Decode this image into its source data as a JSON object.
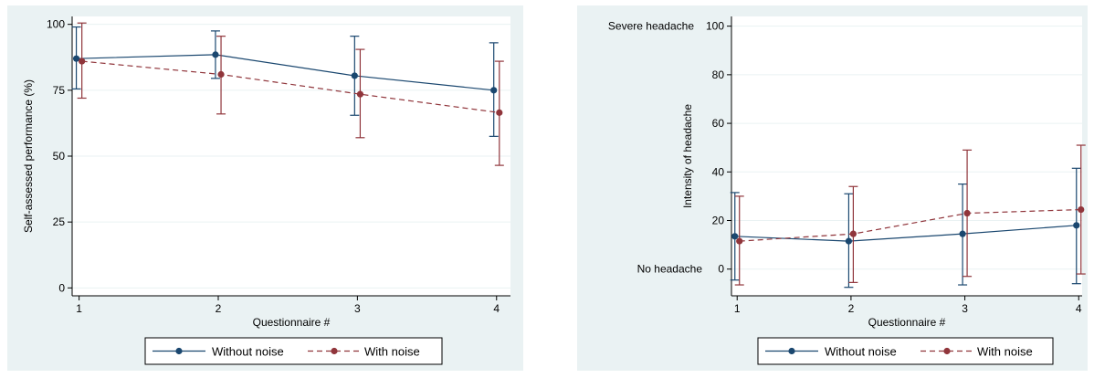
{
  "colors": {
    "outer_bg": "#eaf2f3",
    "plot_bg": "#ffffff",
    "grid": "#eaf2f3",
    "without_noise": "#1a476f",
    "with_noise": "#90353b"
  },
  "chart_data": [
    {
      "type": "line",
      "title": "",
      "xlabel": "Questionnaire #",
      "ylabel": "Self-assessed performance (%)",
      "x": [
        1,
        2,
        3,
        4
      ],
      "xlim": [
        0.95,
        4.1
      ],
      "ylim": [
        -3,
        103
      ],
      "yticks": [
        0,
        25,
        50,
        75,
        100
      ],
      "ytick_labels": [
        "0",
        "25",
        "50",
        "75",
        "100"
      ],
      "grid": true,
      "legend": "bottom",
      "series": [
        {
          "name": "Without noise",
          "style": "solid",
          "x": [
            0.98,
            1.98,
            2.98,
            3.98
          ],
          "values": [
            87,
            88.5,
            80.5,
            75
          ],
          "lower": [
            75.5,
            79.5,
            65.5,
            57.5
          ],
          "upper": [
            99,
            97.5,
            95.5,
            93
          ]
        },
        {
          "name": "With noise",
          "style": "dashed",
          "x": [
            1.02,
            2.02,
            3.02,
            4.02
          ],
          "values": [
            86,
            81,
            73.5,
            66.5
          ],
          "lower": [
            72,
            66,
            57,
            46.5
          ],
          "upper": [
            100.5,
            95.5,
            90.5,
            86
          ]
        }
      ]
    },
    {
      "type": "line",
      "title": "",
      "xlabel": "Questionnaire #",
      "ylabel": "Intensity of headache",
      "x": [
        1,
        2,
        3,
        4
      ],
      "xlim": [
        0.95,
        4.03
      ],
      "ylim": [
        -11,
        104
      ],
      "yticks": [
        0,
        20,
        40,
        60,
        80,
        100
      ],
      "ytick_labels": [
        "0",
        "20",
        "40",
        "60",
        "80",
        "100"
      ],
      "annotations": {
        "top": "Severe headache",
        "bottom": "No headache"
      },
      "grid": true,
      "legend": "bottom",
      "series": [
        {
          "name": "Without noise",
          "style": "solid",
          "x": [
            0.98,
            1.98,
            2.98,
            3.98
          ],
          "values": [
            13.5,
            11.5,
            14.5,
            18
          ],
          "lower": [
            -4.5,
            -7.5,
            -6.5,
            -6
          ],
          "upper": [
            31.5,
            31,
            35,
            41.5
          ]
        },
        {
          "name": "With noise",
          "style": "dashed",
          "x": [
            1.02,
            2.02,
            3.02,
            4.02
          ],
          "values": [
            11.5,
            14.5,
            23,
            24.5
          ],
          "lower": [
            -6.5,
            -5.5,
            -3,
            -2
          ],
          "upper": [
            30,
            34,
            49,
            51
          ]
        }
      ]
    }
  ]
}
